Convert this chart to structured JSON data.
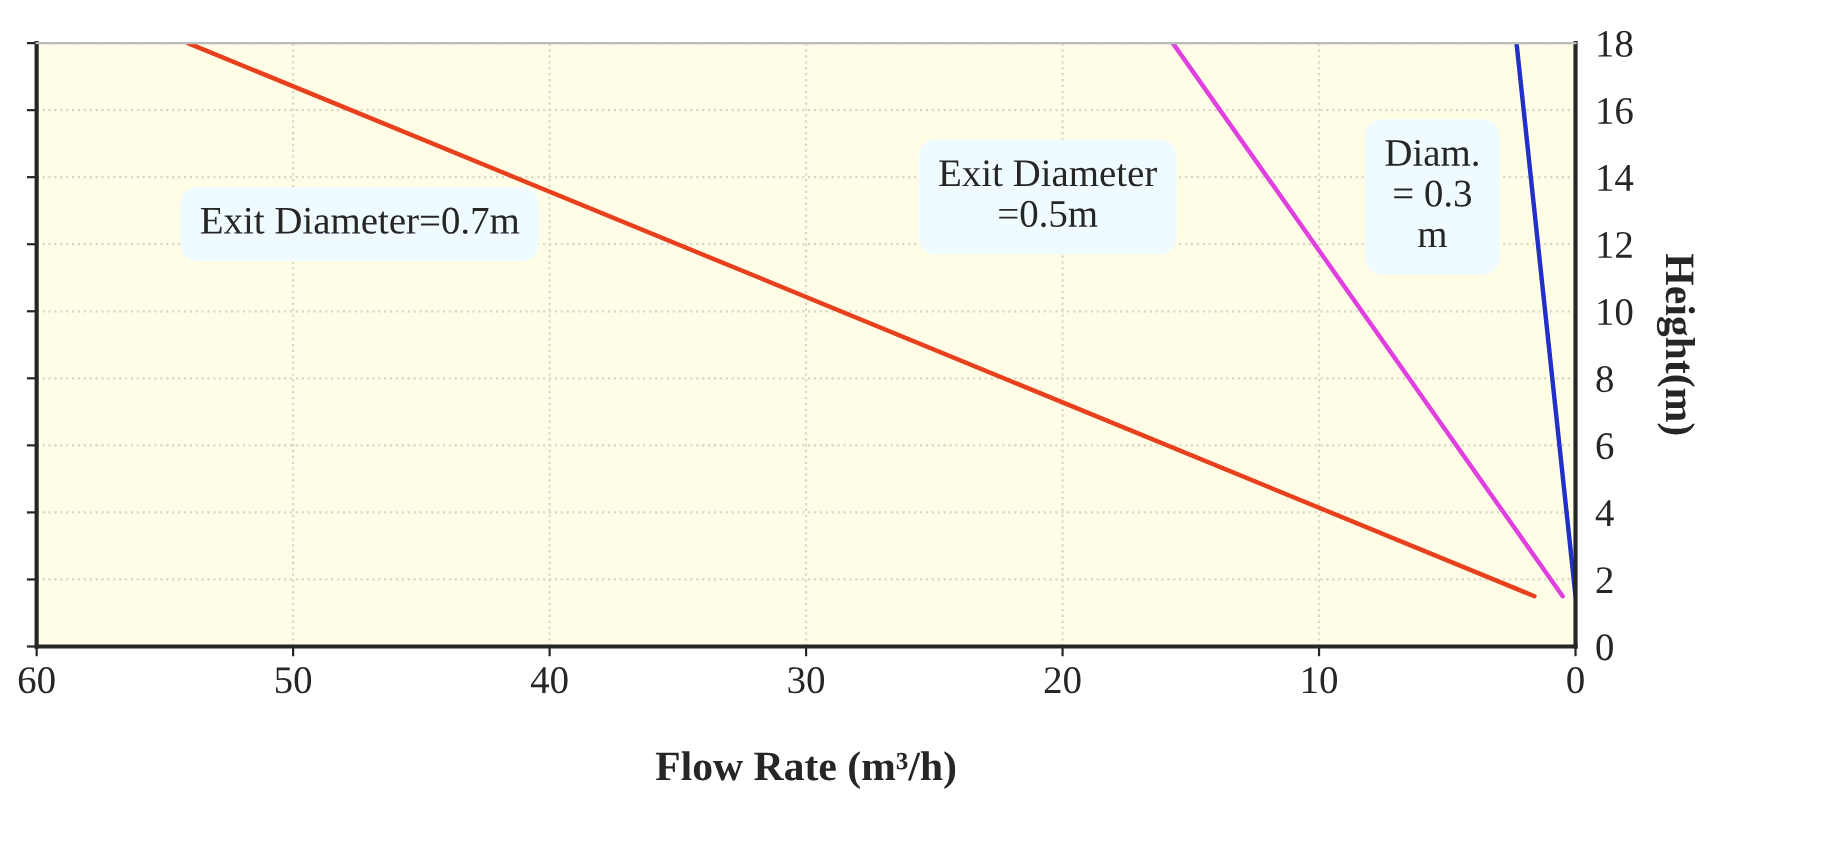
{
  "chart_data": {
    "type": "line",
    "xlabel": "Flow Rate (m³/h)",
    "ylabel": "Height(m)",
    "series": [
      {
        "color": "#e8401c",
        "x": [
          54.1,
          1.6
        ],
        "values": [
          18,
          1.5
        ]
      },
      {
        "color": "#e040e0",
        "x": [
          15.7,
          0.5
        ],
        "values": [
          18,
          1.5
        ]
      },
      {
        "color": "#2030c8",
        "x": [
          2.3,
          0
        ],
        "values": [
          18,
          1.5
        ]
      }
    ],
    "annotations": [
      "Exit Diameter=0.7m",
      "Exit Diameter\n=0.5m",
      "Diam.\n= 0.3\nm"
    ],
    "xlim": [
      60,
      0
    ],
    "xticks": [
      60,
      50,
      40,
      30,
      20,
      10,
      0
    ],
    "ylim": [
      0,
      18
    ],
    "yticks": [
      0,
      2,
      4,
      6,
      8,
      10,
      12,
      14,
      16,
      18
    ],
    "grid": true,
    "marker": "none",
    "line_style": "solid"
  }
}
